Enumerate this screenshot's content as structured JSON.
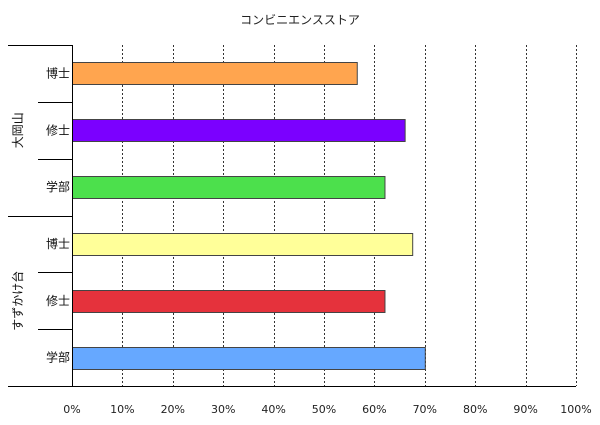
{
  "chart_data": {
    "type": "bar",
    "orientation": "horizontal",
    "title": "コンビニエンスストア",
    "xlabel": "",
    "ylabel": "",
    "xlim": [
      0,
      100
    ],
    "x_ticks": [
      "0%",
      "10%",
      "20%",
      "30%",
      "40%",
      "50%",
      "60%",
      "70%",
      "80%",
      "90%",
      "100%"
    ],
    "grid": "vertical dotted",
    "groups": [
      {
        "name": "大岡山",
        "bars": [
          {
            "category": "博士",
            "value": 56.5,
            "color": "#FFA54F"
          },
          {
            "category": "修士",
            "value": 66,
            "color": "#7B00FF"
          },
          {
            "category": "学部",
            "value": 62,
            "color": "#4CE04C"
          }
        ]
      },
      {
        "name": "すずかけ台",
        "bars": [
          {
            "category": "博士",
            "value": 67.5,
            "color": "#FFFF99"
          },
          {
            "category": "修士",
            "value": 62,
            "color": "#E5323C"
          },
          {
            "category": "学部",
            "value": 70,
            "color": "#66A8FF"
          }
        ]
      }
    ]
  }
}
